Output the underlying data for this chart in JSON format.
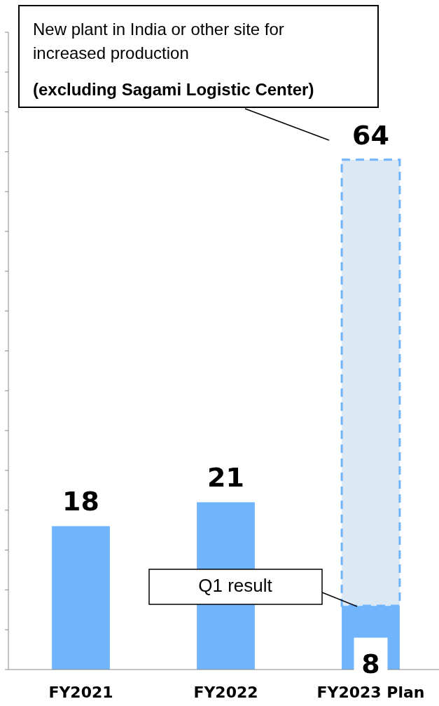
{
  "chart_data": {
    "type": "bar",
    "stacked": true,
    "categories": [
      "FY2021",
      "FY2022",
      "FY2023 Plan"
    ],
    "series": [
      {
        "color": "#70b4fc",
        "values": [
          18,
          21,
          8
        ],
        "value_labels": [
          null,
          null,
          "8"
        ]
      },
      {
        "color": "#dde8f5",
        "values": [
          null,
          null,
          56
        ],
        "line_style": "dashed"
      }
    ],
    "totals": [
      "18",
      "21",
      "64"
    ],
    "ylim": [
      0,
      80
    ],
    "yticks": [
      {
        "value": 0,
        "label": null
      },
      {
        "value": 5,
        "label": null
      },
      {
        "value": 10,
        "label": null
      },
      {
        "value": 15,
        "label": null
      },
      {
        "value": 20,
        "label": null
      },
      {
        "value": 25,
        "label": null
      },
      {
        "value": 30,
        "label": null
      },
      {
        "value": 35,
        "label": null
      },
      {
        "value": 40,
        "label": null
      },
      {
        "value": 45,
        "label": null
      },
      {
        "value": 50,
        "label": null
      },
      {
        "value": 55,
        "label": null
      },
      {
        "value": 60,
        "label": null
      },
      {
        "value": 65,
        "label": null
      },
      {
        "value": 70,
        "label": null
      },
      {
        "value": 75,
        "label": null
      },
      {
        "value": 80,
        "label": null
      }
    ],
    "tick_labels": "x",
    "annotations": [
      "New plant in India or other site for increased production",
      "(excluding Sagami Logistic Center)",
      "Q1 result"
    ]
  }
}
